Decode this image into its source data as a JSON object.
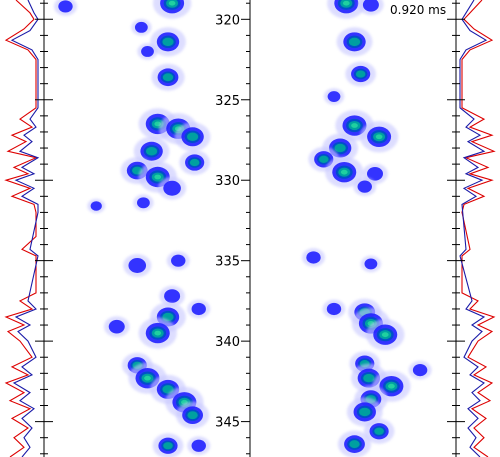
{
  "timestamp": "0.920 ms",
  "chart_data": {
    "type": "heatmap",
    "title": "",
    "xlabel": "",
    "ylabel": "",
    "ylim": [
      318.8,
      347.2
    ],
    "major_ticks": [
      320,
      325,
      330,
      335,
      340,
      345
    ],
    "tick_labels": [
      "320",
      "325",
      "330",
      "335",
      "340",
      "345"
    ],
    "panels": [
      {
        "name": "left",
        "blobs": [
          {
            "y": 319.0,
            "x": 0.62,
            "intensity": 1.0
          },
          {
            "y": 319.2,
            "x": 0.1,
            "intensity": 0.4
          },
          {
            "y": 320.5,
            "x": 0.47,
            "intensity": 0.3
          },
          {
            "y": 321.4,
            "x": 0.6,
            "intensity": 0.9
          },
          {
            "y": 322.0,
            "x": 0.5,
            "intensity": 0.3
          },
          {
            "y": 323.6,
            "x": 0.6,
            "intensity": 0.8
          },
          {
            "y": 326.5,
            "x": 0.55,
            "intensity": 1.0
          },
          {
            "y": 326.8,
            "x": 0.65,
            "intensity": 1.0
          },
          {
            "y": 327.3,
            "x": 0.72,
            "intensity": 0.9
          },
          {
            "y": 328.2,
            "x": 0.52,
            "intensity": 0.9
          },
          {
            "y": 328.9,
            "x": 0.73,
            "intensity": 0.7
          },
          {
            "y": 329.4,
            "x": 0.45,
            "intensity": 0.8
          },
          {
            "y": 329.8,
            "x": 0.55,
            "intensity": 1.0
          },
          {
            "y": 330.5,
            "x": 0.62,
            "intensity": 0.6
          },
          {
            "y": 331.4,
            "x": 0.48,
            "intensity": 0.3
          },
          {
            "y": 331.6,
            "x": 0.25,
            "intensity": 0.2
          },
          {
            "y": 335.3,
            "x": 0.45,
            "intensity": 0.6
          },
          {
            "y": 335.0,
            "x": 0.65,
            "intensity": 0.4
          },
          {
            "y": 337.2,
            "x": 0.62,
            "intensity": 0.5
          },
          {
            "y": 338.5,
            "x": 0.6,
            "intensity": 0.9
          },
          {
            "y": 339.5,
            "x": 0.55,
            "intensity": 1.0
          },
          {
            "y": 339.1,
            "x": 0.35,
            "intensity": 0.5
          },
          {
            "y": 338.0,
            "x": 0.75,
            "intensity": 0.4
          },
          {
            "y": 341.5,
            "x": 0.45,
            "intensity": 0.7
          },
          {
            "y": 342.3,
            "x": 0.5,
            "intensity": 1.0
          },
          {
            "y": 343.0,
            "x": 0.6,
            "intensity": 0.9
          },
          {
            "y": 343.8,
            "x": 0.68,
            "intensity": 1.0
          },
          {
            "y": 344.6,
            "x": 0.72,
            "intensity": 0.8
          },
          {
            "y": 346.5,
            "x": 0.6,
            "intensity": 0.7
          },
          {
            "y": 346.5,
            "x": 0.75,
            "intensity": 0.4
          }
        ]
      },
      {
        "name": "right",
        "blobs": [
          {
            "y": 319.0,
            "x": 0.46,
            "intensity": 1.0
          },
          {
            "y": 319.1,
            "x": 0.58,
            "intensity": 0.5
          },
          {
            "y": 321.4,
            "x": 0.5,
            "intensity": 0.9
          },
          {
            "y": 323.4,
            "x": 0.53,
            "intensity": 0.7
          },
          {
            "y": 324.8,
            "x": 0.4,
            "intensity": 0.3
          },
          {
            "y": 326.6,
            "x": 0.5,
            "intensity": 1.0
          },
          {
            "y": 327.3,
            "x": 0.62,
            "intensity": 1.0
          },
          {
            "y": 328.0,
            "x": 0.43,
            "intensity": 0.9
          },
          {
            "y": 328.7,
            "x": 0.35,
            "intensity": 0.7
          },
          {
            "y": 329.5,
            "x": 0.45,
            "intensity": 1.0
          },
          {
            "y": 329.6,
            "x": 0.6,
            "intensity": 0.5
          },
          {
            "y": 330.4,
            "x": 0.55,
            "intensity": 0.4
          },
          {
            "y": 334.8,
            "x": 0.3,
            "intensity": 0.4
          },
          {
            "y": 335.2,
            "x": 0.58,
            "intensity": 0.3
          },
          {
            "y": 338.2,
            "x": 0.55,
            "intensity": 0.8
          },
          {
            "y": 338.9,
            "x": 0.58,
            "intensity": 1.0
          },
          {
            "y": 339.6,
            "x": 0.65,
            "intensity": 1.0
          },
          {
            "y": 338.0,
            "x": 0.4,
            "intensity": 0.4
          },
          {
            "y": 341.4,
            "x": 0.55,
            "intensity": 0.7
          },
          {
            "y": 342.3,
            "x": 0.57,
            "intensity": 0.9
          },
          {
            "y": 342.8,
            "x": 0.68,
            "intensity": 1.0
          },
          {
            "y": 343.6,
            "x": 0.58,
            "intensity": 0.8
          },
          {
            "y": 344.4,
            "x": 0.55,
            "intensity": 0.9
          },
          {
            "y": 345.6,
            "x": 0.62,
            "intensity": 0.7
          },
          {
            "y": 346.4,
            "x": 0.5,
            "intensity": 0.8
          },
          {
            "y": 341.8,
            "x": 0.82,
            "intensity": 0.4
          }
        ]
      }
    ],
    "profiles": [
      {
        "name": "left-outer",
        "series": [
          {
            "color": "#dd0000",
            "points": [
              [
                318.8,
                0.7
              ],
              [
                319.6,
                0.35
              ],
              [
                320.0,
                0.25
              ],
              [
                320.6,
                0.5
              ],
              [
                321.3,
                0.95
              ],
              [
                321.9,
                0.4
              ],
              [
                322.5,
                0.2
              ],
              [
                325.5,
                0.2
              ],
              [
                326.2,
                0.6
              ],
              [
                326.7,
                0.3
              ],
              [
                327.2,
                0.8
              ],
              [
                327.6,
                0.45
              ],
              [
                328.2,
                0.9
              ],
              [
                328.6,
                0.2
              ],
              [
                329.2,
                0.75
              ],
              [
                329.6,
                0.4
              ],
              [
                330.0,
                0.95
              ],
              [
                330.5,
                0.35
              ],
              [
                331.0,
                0.8
              ],
              [
                331.5,
                0.25
              ],
              [
                332.0,
                0.2
              ],
              [
                333.5,
                0.2
              ],
              [
                334.3,
                0.55
              ],
              [
                334.7,
                0.2
              ],
              [
                337.0,
                0.2
              ],
              [
                337.5,
                0.6
              ],
              [
                338.0,
                0.3
              ],
              [
                338.5,
                0.95
              ],
              [
                339.0,
                0.5
              ],
              [
                339.4,
                0.9
              ],
              [
                340.0,
                0.6
              ],
              [
                341.0,
                0.3
              ],
              [
                341.6,
                0.8
              ],
              [
                342.1,
                0.4
              ],
              [
                342.6,
                0.95
              ],
              [
                343.2,
                0.5
              ],
              [
                343.7,
                0.85
              ],
              [
                344.2,
                0.35
              ],
              [
                344.8,
                0.8
              ],
              [
                345.4,
                0.4
              ],
              [
                346.0,
                0.75
              ],
              [
                346.6,
                0.5
              ],
              [
                347.2,
                0.85
              ]
            ]
          },
          {
            "color": "#1a1aa8",
            "points": [
              [
                318.8,
                0.4
              ],
              [
                319.6,
                0.25
              ],
              [
                320.0,
                0.15
              ],
              [
                320.7,
                0.35
              ],
              [
                321.3,
                0.8
              ],
              [
                321.9,
                0.3
              ],
              [
                322.5,
                0.15
              ],
              [
                325.5,
                0.15
              ],
              [
                326.2,
                0.35
              ],
              [
                326.7,
                0.2
              ],
              [
                327.2,
                0.5
              ],
              [
                327.6,
                0.3
              ],
              [
                328.2,
                0.6
              ],
              [
                328.6,
                0.15
              ],
              [
                329.2,
                0.55
              ],
              [
                329.6,
                0.25
              ],
              [
                330.0,
                0.7
              ],
              [
                330.5,
                0.25
              ],
              [
                331.0,
                0.55
              ],
              [
                331.5,
                0.15
              ],
              [
                332.0,
                0.15
              ],
              [
                334.3,
                0.35
              ],
              [
                334.7,
                0.15
              ],
              [
                337.5,
                0.4
              ],
              [
                338.0,
                0.2
              ],
              [
                338.5,
                0.7
              ],
              [
                339.0,
                0.35
              ],
              [
                339.4,
                0.65
              ],
              [
                340.0,
                0.4
              ],
              [
                341.0,
                0.2
              ],
              [
                341.6,
                0.55
              ],
              [
                342.1,
                0.3
              ],
              [
                342.6,
                0.75
              ],
              [
                343.2,
                0.35
              ],
              [
                343.7,
                0.6
              ],
              [
                344.2,
                0.25
              ],
              [
                344.8,
                0.55
              ],
              [
                345.4,
                0.3
              ],
              [
                346.0,
                0.5
              ],
              [
                346.6,
                0.35
              ],
              [
                347.2,
                0.55
              ]
            ]
          }
        ]
      },
      {
        "name": "right-outer",
        "series": [
          {
            "color": "#dd0000",
            "points": [
              [
                318.8,
                0.65
              ],
              [
                319.6,
                0.35
              ],
              [
                320.0,
                0.2
              ],
              [
                320.6,
                0.45
              ],
              [
                321.3,
                0.9
              ],
              [
                321.9,
                0.35
              ],
              [
                322.5,
                0.15
              ],
              [
                325.5,
                0.15
              ],
              [
                326.2,
                0.7
              ],
              [
                326.7,
                0.35
              ],
              [
                327.2,
                0.9
              ],
              [
                327.6,
                0.4
              ],
              [
                328.2,
                0.95
              ],
              [
                328.6,
                0.25
              ],
              [
                329.2,
                0.8
              ],
              [
                329.6,
                0.35
              ],
              [
                330.0,
                0.9
              ],
              [
                330.5,
                0.3
              ],
              [
                331.0,
                0.7
              ],
              [
                331.5,
                0.2
              ],
              [
                332.0,
                0.15
              ],
              [
                334.3,
                0.35
              ],
              [
                334.7,
                0.15
              ],
              [
                337.0,
                0.15
              ],
              [
                337.5,
                0.55
              ],
              [
                338.0,
                0.35
              ],
              [
                338.5,
                0.95
              ],
              [
                339.0,
                0.55
              ],
              [
                339.4,
                0.9
              ],
              [
                340.0,
                0.55
              ],
              [
                341.0,
                0.3
              ],
              [
                341.6,
                0.75
              ],
              [
                342.1,
                0.45
              ],
              [
                342.6,
                0.9
              ],
              [
                343.2,
                0.55
              ],
              [
                343.7,
                0.85
              ],
              [
                344.2,
                0.4
              ],
              [
                344.8,
                0.75
              ],
              [
                345.4,
                0.45
              ],
              [
                346.0,
                0.7
              ],
              [
                346.6,
                0.45
              ],
              [
                347.2,
                0.8
              ]
            ]
          },
          {
            "color": "#1a1aa8",
            "points": [
              [
                318.8,
                0.45
              ],
              [
                319.6,
                0.25
              ],
              [
                320.0,
                0.15
              ],
              [
                320.7,
                0.35
              ],
              [
                321.3,
                0.75
              ],
              [
                321.9,
                0.25
              ],
              [
                322.5,
                0.1
              ],
              [
                325.5,
                0.1
              ],
              [
                326.2,
                0.45
              ],
              [
                326.7,
                0.25
              ],
              [
                327.2,
                0.6
              ],
              [
                327.6,
                0.3
              ],
              [
                328.2,
                0.7
              ],
              [
                328.6,
                0.2
              ],
              [
                329.2,
                0.55
              ],
              [
                329.6,
                0.25
              ],
              [
                330.0,
                0.65
              ],
              [
                330.5,
                0.2
              ],
              [
                331.0,
                0.5
              ],
              [
                331.5,
                0.15
              ],
              [
                334.3,
                0.25
              ],
              [
                334.7,
                0.1
              ],
              [
                337.5,
                0.4
              ],
              [
                338.0,
                0.25
              ],
              [
                338.5,
                0.7
              ],
              [
                339.0,
                0.4
              ],
              [
                339.4,
                0.65
              ],
              [
                340.0,
                0.4
              ],
              [
                341.0,
                0.2
              ],
              [
                341.6,
                0.55
              ],
              [
                342.1,
                0.35
              ],
              [
                342.6,
                0.7
              ],
              [
                343.2,
                0.4
              ],
              [
                343.7,
                0.6
              ],
              [
                344.2,
                0.3
              ],
              [
                344.8,
                0.55
              ],
              [
                345.4,
                0.3
              ],
              [
                346.0,
                0.5
              ],
              [
                346.6,
                0.35
              ],
              [
                347.2,
                0.6
              ]
            ]
          }
        ]
      }
    ],
    "colormap": [
      "#ffffff",
      "#c8c8ff",
      "#2020ff",
      "#0050c8",
      "#00a0a0",
      "#20d0a0"
    ],
    "grid": false,
    "legend": "none"
  }
}
